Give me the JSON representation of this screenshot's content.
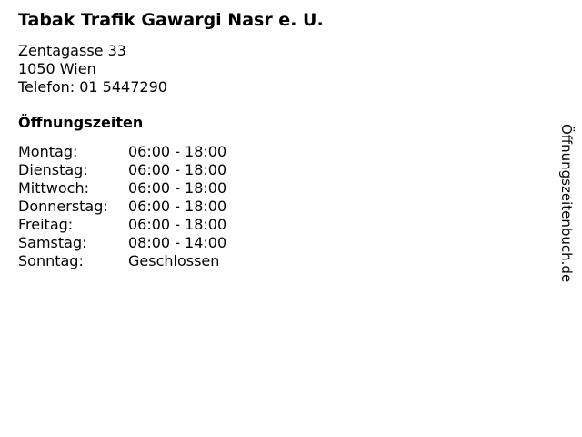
{
  "business": {
    "name": "Tabak Trafik Gawargi Nasr e. U.",
    "street": "Zentagasse 33",
    "city": "1050 Wien",
    "phone": "Telefon: 01 5447290"
  },
  "hours": {
    "heading": "Öffnungszeiten",
    "rows": [
      {
        "day": "Montag:",
        "time": "06:00 - 18:00"
      },
      {
        "day": "Dienstag:",
        "time": "06:00 - 18:00"
      },
      {
        "day": "Mittwoch:",
        "time": "06:00 - 18:00"
      },
      {
        "day": "Donnerstag:",
        "time": "06:00 - 18:00"
      },
      {
        "day": "Freitag:",
        "time": "06:00 - 18:00"
      },
      {
        "day": "Samstag:",
        "time": "08:00 - 14:00"
      },
      {
        "day": "Sonntag:",
        "time": "Geschlossen"
      }
    ]
  },
  "branding": {
    "site": "Öffnungszeitenbuch.de"
  },
  "colors": {
    "text": "#000000",
    "background": "#ffffff"
  }
}
